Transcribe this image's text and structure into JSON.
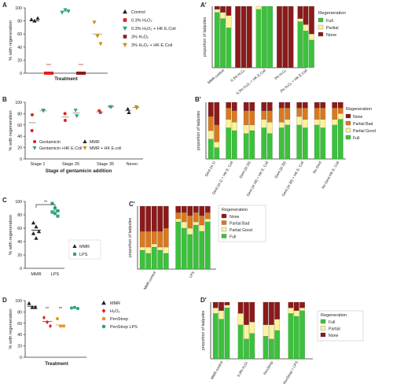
{
  "colors": {
    "full": "#3cc13c",
    "partial_good": "#fbf39a",
    "partial_bad": "#d9791f",
    "partial": "#fbf39a",
    "none": "#8b1a1a",
    "control": "#222222",
    "h2o2": "#e02020",
    "h2o2_hk": "#2aa67a",
    "h2o2_3pct": "#8b1a1a",
    "h2o2_3pct_hk": "#c8901e",
    "mmr": "#222222",
    "lps": "#2aa67a",
    "penstrep": "#e8951e",
    "penstrep_lps": "#2aa67a",
    "gentamicin": "#e02020",
    "gentamicin_hk": "#2aa67a",
    "mmr_hk": "#c8901e"
  },
  "chart_data": [
    {
      "panel": "A",
      "type": "scatter",
      "xlabel": "Treatment",
      "ylabel": "% with regeneration",
      "yticks": [
        "0",
        "20",
        "40",
        "60",
        "80",
        "100"
      ],
      "ylim": [
        0,
        100
      ],
      "categories": [
        "Control",
        "0.3% H2O2",
        "0.3% H2O2 + HK E.Coli",
        "3% H2O2",
        "3% H2O2 + HK E.Coli"
      ],
      "series": [
        {
          "name": "Control",
          "marker": "triangle-up",
          "color_key": "control",
          "mean": 80,
          "values": [
            82,
            80,
            84
          ]
        },
        {
          "name": "0.3% H2O2",
          "marker": "square",
          "color_key": "h2o2",
          "mean": 0,
          "values": [
            0,
            0,
            0
          ]
        },
        {
          "name": "0.3% H2O2 + HK E.Coli",
          "marker": "triangle-down",
          "color_key": "h2o2_hk",
          "mean": 95,
          "values": [
            93,
            97,
            95
          ]
        },
        {
          "name": "3% H2O2",
          "marker": "square",
          "color_key": "h2o2_3pct",
          "mean": 0,
          "values": [
            0,
            0,
            0
          ]
        },
        {
          "name": "3% H2O2 + HK E.Coli",
          "marker": "triangle-down",
          "color_key": "h2o2_3pct_hk",
          "mean": 60,
          "values": [
            78,
            57,
            45
          ]
        }
      ],
      "annotations": [
        "***",
        "***"
      ],
      "legend": {
        "entries": [
          "Control",
          "0.3% H₂O₂",
          "0.3% H₂O₂ + HK E.Coli",
          "3% H₂O₂",
          "3% H₂O₂ + HK E.Coli"
        ]
      }
    },
    {
      "panel": "A'",
      "type": "bar",
      "stacked": true,
      "ylabel": "proportion of tadpoles",
      "category_labels": [
        "MMR control",
        "0.3% H₂O₂",
        "0.3% H₂O₂ + HK E.Coli",
        "3% H₂O₂",
        "3% H₂O₂ + HK E.Coli"
      ],
      "groups": [
        [
          {
            "full": 0.9,
            "partial": 0.05,
            "none": 0.05
          },
          {
            "full": 0.8,
            "partial": 0.1,
            "none": 0.1
          },
          {
            "full": 0.65,
            "partial": 0.2,
            "none": 0.15
          }
        ],
        [
          {
            "full": 0.0,
            "partial": 0.0,
            "none": 1.0
          },
          {
            "full": 0.0,
            "partial": 0.0,
            "none": 1.0
          },
          {
            "full": 0.0,
            "partial": 0.0,
            "none": 1.0
          }
        ],
        [
          {
            "full": 0.95,
            "partial": 0.05,
            "none": 0.0
          },
          {
            "full": 1.0,
            "partial": 0.0,
            "none": 0.0
          },
          {
            "full": 1.0,
            "partial": 0.0,
            "none": 0.0
          }
        ],
        [
          {
            "full": 0.0,
            "partial": 0.0,
            "none": 1.0
          },
          {
            "full": 0.0,
            "partial": 0.0,
            "none": 1.0
          },
          {
            "full": 0.0,
            "partial": 0.0,
            "none": 1.0
          }
        ],
        [
          {
            "full": 0.75,
            "partial": 0.05,
            "none": 0.2
          },
          {
            "full": 0.6,
            "partial": 0.1,
            "none": 0.3
          },
          {
            "full": 0.45,
            "partial": 0.1,
            "none": 0.45
          }
        ]
      ],
      "legend": {
        "title": "Regeneration",
        "entries": [
          "Full",
          "Partial",
          "None"
        ],
        "color_keys": [
          "full",
          "partial",
          "none"
        ]
      }
    },
    {
      "panel": "B",
      "type": "scatter",
      "xlabel": "Stage of gentamicin addition",
      "ylabel": "% with regeneration",
      "yticks": [
        "0",
        "20",
        "40",
        "60",
        "80",
        "100"
      ],
      "ylim": [
        0,
        100
      ],
      "categories": [
        "Stage 1",
        "Stage 26",
        "Stage 35",
        "Never"
      ],
      "series": [
        {
          "name": "Gentamicin",
          "marker": "circle",
          "color_key": "gentamicin",
          "points": [
            [
              0,
              78
            ],
            [
              0,
              50
            ],
            [
              1,
              80
            ],
            [
              1,
              68
            ],
            [
              2,
              82
            ],
            [
              2,
              85
            ]
          ],
          "means": [
            64,
            74,
            83
          ]
        },
        {
          "name": "Gentamicin +HK E.Coli",
          "marker": "triangle-down",
          "color_key": "gentamicin_hk",
          "points": [
            [
              0,
              85
            ],
            [
              0,
              86
            ],
            [
              1,
              86
            ],
            [
              1,
              76
            ],
            [
              2,
              92
            ],
            [
              2,
              92
            ]
          ],
          "means": [
            85,
            81,
            92
          ]
        },
        {
          "name": "MMR",
          "marker": "triangle-up",
          "color_key": "mmr",
          "points": [
            [
              3,
              88
            ],
            [
              3,
              82
            ]
          ],
          "means": [
            85
          ]
        },
        {
          "name": "MMR + HK E.coli",
          "marker": "triangle-down",
          "color_key": "mmr_hk",
          "points": [
            [
              3,
              92
            ],
            [
              3,
              90
            ]
          ],
          "means": [
            91
          ]
        }
      ],
      "legend": {
        "entries": [
          "Gentamicin",
          "Gentamicin +HK E.Coli",
          "MMR",
          "MMR + HK E.coli"
        ]
      }
    },
    {
      "panel": "B'",
      "type": "bar",
      "stacked": true,
      "ylabel": "proportion of tadpoles",
      "category_labels": [
        "Gent (st 1)",
        "Gent (st 1) + HK E. Coli",
        "Gent (st 26)",
        "Gent (st 26) + HK E. Coli",
        "Gent (st 35)",
        "Gent (st 35) + HK E. Coli",
        "No Gent",
        "No Gent HK E. Coli"
      ],
      "groups": [
        [
          {
            "full": 0.35,
            "partial_good": 0.15,
            "partial_bad": 0.25,
            "none": 0.25
          },
          {
            "full": 0.2,
            "partial_good": 0.1,
            "partial_bad": 0.3,
            "none": 0.4
          }
        ],
        [
          {
            "full": 0.55,
            "partial_good": 0.15,
            "partial_bad": 0.2,
            "none": 0.1
          },
          {
            "full": 0.5,
            "partial_good": 0.15,
            "partial_bad": 0.2,
            "none": 0.15
          }
        ],
        [
          {
            "full": 0.45,
            "partial_good": 0.15,
            "partial_bad": 0.25,
            "none": 0.15
          },
          {
            "full": 0.5,
            "partial_good": 0.1,
            "partial_bad": 0.25,
            "none": 0.15
          }
        ],
        [
          {
            "full": 0.55,
            "partial_good": 0.15,
            "partial_bad": 0.15,
            "none": 0.15
          },
          {
            "full": 0.45,
            "partial_good": 0.2,
            "partial_bad": 0.2,
            "none": 0.15
          }
        ],
        [
          {
            "full": 0.55,
            "partial_good": 0.1,
            "partial_bad": 0.25,
            "none": 0.1
          },
          {
            "full": 0.6,
            "partial_good": 0.1,
            "partial_bad": 0.2,
            "none": 0.1
          }
        ],
        [
          {
            "full": 0.6,
            "partial_good": 0.15,
            "partial_bad": 0.15,
            "none": 0.1
          },
          {
            "full": 0.55,
            "partial_good": 0.15,
            "partial_bad": 0.2,
            "none": 0.1
          }
        ],
        [
          {
            "full": 0.6,
            "partial_good": 0.1,
            "partial_bad": 0.2,
            "none": 0.1
          },
          {
            "full": 0.55,
            "partial_good": 0.15,
            "partial_bad": 0.2,
            "none": 0.1
          }
        ],
        [
          {
            "full": 0.6,
            "partial_good": 0.1,
            "partial_bad": 0.2,
            "none": 0.1
          },
          {
            "full": 0.7,
            "partial_good": 0.1,
            "partial_bad": 0.1,
            "none": 0.1
          }
        ]
      ],
      "legend": {
        "title": "Regeneration",
        "entries": [
          "None",
          "Partial Bad",
          "Partial Good",
          "Full"
        ],
        "color_keys": [
          "none",
          "partial_bad",
          "partial_good",
          "full"
        ]
      }
    },
    {
      "panel": "C",
      "type": "scatter",
      "xlabel": "",
      "ylabel": "% with regeneration",
      "yticks": [
        "0",
        "20",
        "40",
        "60",
        "80",
        "100"
      ],
      "ylim": [
        0,
        100
      ],
      "categories": [
        "MMR",
        "LPS"
      ],
      "series": [
        {
          "name": "MMR",
          "marker": "triangle-up",
          "color_key": "mmr",
          "mean": 57,
          "values": [
            68,
            62,
            55,
            52,
            45
          ]
        },
        {
          "name": "LPS",
          "marker": "square",
          "color_key": "lps",
          "mean": 86,
          "values": [
            97,
            90,
            86,
            84,
            82,
            78
          ]
        }
      ],
      "annotations": [
        "**"
      ],
      "legend": {
        "entries": [
          "MMR",
          "LPS"
        ]
      }
    },
    {
      "panel": "C'",
      "type": "bar",
      "stacked": true,
      "ylabel": "proportion of tadpoles",
      "category_labels": [
        "MMR control",
        "LPS"
      ],
      "groups": [
        [
          {
            "full": 0.3,
            "partial_good": 0.05,
            "partial_bad": 0.25,
            "none": 0.4
          },
          {
            "full": 0.25,
            "partial_good": 0.1,
            "partial_bad": 0.25,
            "none": 0.4
          },
          {
            "full": 0.35,
            "partial_good": 0.05,
            "partial_bad": 0.2,
            "none": 0.4
          },
          {
            "full": 0.3,
            "partial_good": 0.05,
            "partial_bad": 0.25,
            "none": 0.4
          },
          {
            "full": 0.25,
            "partial_good": 0.1,
            "partial_bad": 0.3,
            "none": 0.35
          }
        ],
        [
          {
            "full": 0.75,
            "partial_good": 0.05,
            "partial_bad": 0.1,
            "none": 0.1
          },
          {
            "full": 0.65,
            "partial_good": 0.1,
            "partial_bad": 0.15,
            "none": 0.1
          },
          {
            "full": 0.55,
            "partial_good": 0.1,
            "partial_bad": 0.2,
            "none": 0.15
          },
          {
            "full": 0.7,
            "partial_good": 0.05,
            "partial_bad": 0.15,
            "none": 0.1
          },
          {
            "full": 0.6,
            "partial_good": 0.1,
            "partial_bad": 0.15,
            "none": 0.15
          },
          {
            "full": 0.75,
            "partial_good": 0.05,
            "partial_bad": 0.1,
            "none": 0.1
          }
        ]
      ],
      "legend": {
        "title": "Regeneration",
        "entries": [
          "None",
          "Partial Bad",
          "Partial Good",
          "Full"
        ],
        "color_keys": [
          "none",
          "partial_bad",
          "partial_good",
          "full"
        ]
      }
    },
    {
      "panel": "D",
      "type": "scatter",
      "xlabel": "Treatment",
      "ylabel": "% with regeneration",
      "yticks": [
        "0",
        "20",
        "40",
        "60",
        "80",
        "100"
      ],
      "ylim": [
        0,
        100
      ],
      "categories": [
        "MMR",
        "H2O2",
        "PenStrep",
        "PenStrep LPS"
      ],
      "series": [
        {
          "name": "MMR",
          "marker": "triangle-up",
          "color_key": "mmr",
          "mean": 90,
          "values": [
            95,
            88,
            88
          ]
        },
        {
          "name": "H₂O₂",
          "marker": "diamond",
          "color_key": "h2o2",
          "mean": 63,
          "values": [
            70,
            62,
            55
          ]
        },
        {
          "name": "PenStrep",
          "marker": "circle",
          "color_key": "penstrep",
          "mean": 57,
          "values": [
            68,
            55,
            55
          ]
        },
        {
          "name": "PenStrep LPS",
          "marker": "circle",
          "color_key": "penstrep_lps",
          "mean": 87,
          "values": [
            87,
            88,
            86
          ]
        }
      ],
      "annotations": [
        "**",
        "**"
      ],
      "legend": {
        "entries": [
          "MMR",
          "H₂O₂",
          "PenStrep",
          "PenStrep LPS"
        ]
      }
    },
    {
      "panel": "D'",
      "type": "bar",
      "stacked": true,
      "ylabel": "proportion of tadpoles",
      "category_labels": [
        "MMR control",
        "0.3% H₂O₂",
        "PenStrep",
        "PenStrep + LPS"
      ],
      "groups": [
        [
          {
            "full": 0.8,
            "partial": 0.1,
            "none": 0.1
          },
          {
            "full": 0.7,
            "partial": 0.15,
            "none": 0.15
          },
          {
            "full": 0.9,
            "partial": 0.05,
            "none": 0.05
          }
        ],
        [
          {
            "full": 0.6,
            "partial": 0.2,
            "none": 0.2
          },
          {
            "full": 0.35,
            "partial": 0.25,
            "none": 0.4
          },
          {
            "full": 0.45,
            "partial": 0.2,
            "none": 0.35
          }
        ],
        [
          {
            "full": 0.4,
            "partial": 0.2,
            "none": 0.4
          },
          {
            "full": 0.35,
            "partial": 0.25,
            "none": 0.4
          },
          {
            "full": 0.5,
            "partial": 0.2,
            "none": 0.3
          }
        ],
        [
          {
            "full": 0.8,
            "partial": 0.1,
            "none": 0.1
          },
          {
            "full": 0.75,
            "partial": 0.1,
            "none": 0.15
          },
          {
            "full": 0.85,
            "partial": 0.05,
            "none": 0.1
          }
        ]
      ],
      "legend": {
        "title": "Regeneration",
        "entries": [
          "Full",
          "Partial",
          "None"
        ],
        "color_keys": [
          "full",
          "partial",
          "none"
        ]
      }
    }
  ]
}
